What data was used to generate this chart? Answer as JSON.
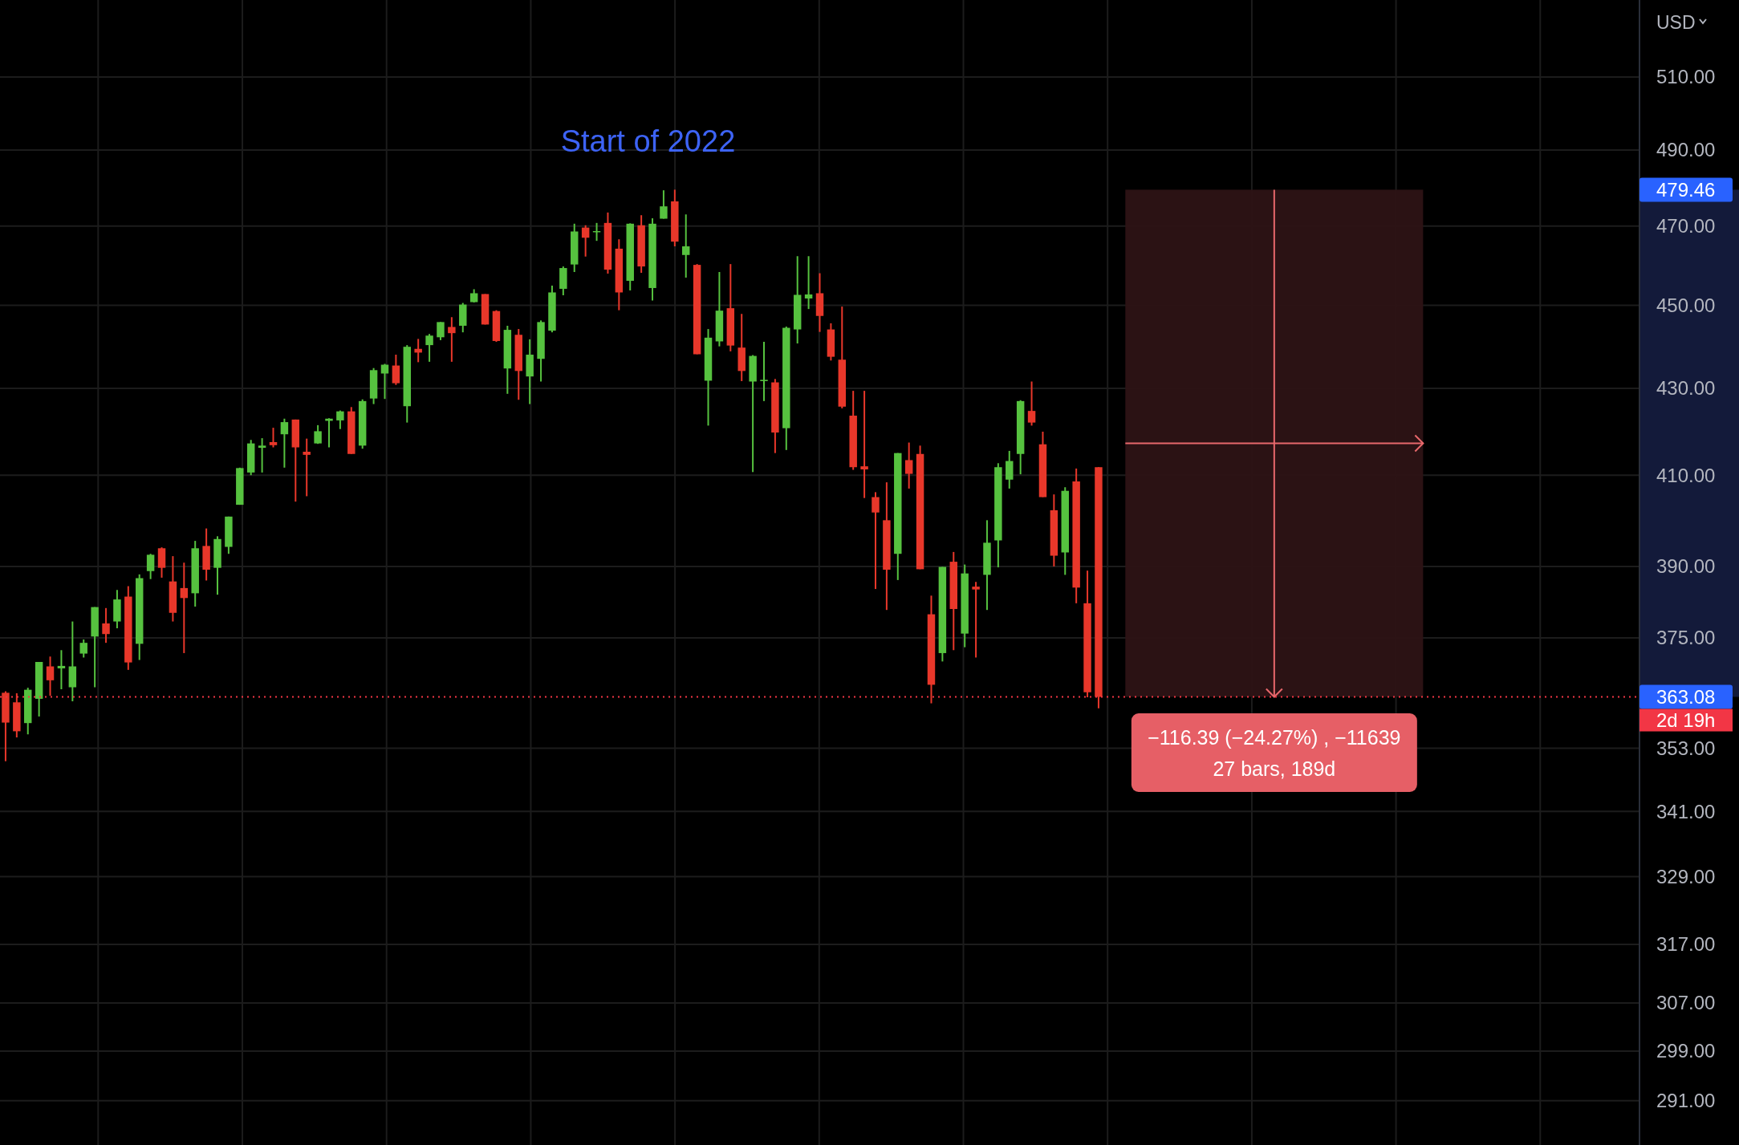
{
  "chart_data": {
    "type": "candlestick",
    "categories": [
      null,
      null,
      null,
      null,
      null,
      null,
      null,
      null,
      null,
      null,
      null,
      null,
      null,
      null,
      null,
      null,
      null,
      null,
      null,
      null,
      null,
      null,
      null,
      null,
      null,
      null,
      null,
      null,
      null,
      null,
      null,
      null,
      null,
      null,
      null,
      null,
      null,
      null,
      null,
      null,
      null,
      null,
      null,
      null,
      null,
      null,
      null,
      null,
      null,
      null,
      null,
      null,
      null,
      null,
      null,
      null,
      null,
      null,
      null,
      null,
      null,
      null,
      null,
      null,
      null,
      null,
      null,
      null,
      null,
      null,
      null,
      null,
      null,
      null,
      null,
      null,
      null,
      null,
      null,
      null,
      null,
      null,
      null,
      null,
      null,
      null,
      null,
      null,
      null,
      null,
      null,
      null,
      null,
      null,
      null,
      null,
      null,
      null,
      null,
      null,
      null,
      null,
      null,
      null,
      null,
      null,
      null,
      null,
      null,
      null,
      null,
      null,
      null,
      null,
      null,
      null,
      null,
      null,
      null,
      null,
      null,
      null,
      null,
      null,
      null,
      null,
      null,
      null,
      null,
      null,
      null,
      null,
      null,
      null,
      null,
      null,
      null,
      null,
      null,
      null,
      null,
      null,
      null,
      null,
      null,
      null,
      null
    ],
    "ohlc": [
      [
        363.9,
        364.2,
        350.5,
        358.0
      ],
      [
        362,
        363.8,
        355.1,
        356.3
      ],
      [
        357.9,
        364.9,
        355.7,
        364.5
      ],
      [
        362.7,
        370.1,
        359.2,
        370.1
      ],
      [
        369.2,
        371.2,
        363.3,
        366.4
      ],
      [
        368.8,
        372.5,
        364.6,
        369.3
      ],
      [
        365,
        378.4,
        362.2,
        369.2
      ],
      [
        371.8,
        374.7,
        371,
        374
      ],
      [
        375.3,
        381.4,
        365,
        381.4
      ],
      [
        378,
        381.2,
        374,
        375.8
      ],
      [
        378.4,
        385,
        377,
        383
      ],
      [
        383.6,
        385.8,
        368.5,
        370
      ],
      [
        373.8,
        388.3,
        370.5,
        387.5
      ],
      [
        389,
        392.7,
        387.3,
        392.5
      ],
      [
        393.9,
        394.1,
        387.6,
        389.7
      ],
      [
        386.8,
        392.2,
        378.4,
        380.2
      ],
      [
        385.4,
        390.8,
        371.9,
        383.3
      ],
      [
        384.3,
        395.5,
        381.5,
        393.9
      ],
      [
        394.4,
        398.2,
        387,
        389.3
      ],
      [
        389.7,
        396.5,
        384,
        395.9
      ],
      [
        394.2,
        400.8,
        392.7,
        400.8
      ],
      [
        403.4,
        411.7,
        403.4,
        411.6
      ],
      [
        410.6,
        418,
        410,
        417.2
      ],
      [
        416.2,
        418.4,
        410.6,
        416.7
      ],
      [
        417.5,
        420.8,
        416.3,
        416.8
      ],
      [
        419.3,
        422.9,
        411.7,
        422.1
      ],
      [
        422.7,
        422.7,
        404.1,
        416.3
      ],
      [
        415.3,
        418.3,
        405.3,
        414.6
      ],
      [
        417.2,
        421.4,
        417.1,
        420
      ],
      [
        422.4,
        423,
        416.3,
        422.9
      ],
      [
        422.5,
        424.8,
        420.5,
        424.6
      ],
      [
        424.6,
        425.6,
        414.8,
        414.8
      ],
      [
        416.7,
        427.4,
        416,
        427
      ],
      [
        427.6,
        434.8,
        426.3,
        434.3
      ],
      [
        433.5,
        435.8,
        427.5,
        435.6
      ],
      [
        435.4,
        438,
        430.8,
        431.2
      ],
      [
        425.8,
        440.3,
        422,
        439.9
      ],
      [
        439.4,
        441.8,
        436.2,
        438.5
      ],
      [
        440.3,
        443,
        436.3,
        442.6
      ],
      [
        442.2,
        445.9,
        441.5,
        445.9
      ],
      [
        444.7,
        447.1,
        436.3,
        443.2
      ],
      [
        445,
        450.6,
        443.4,
        450.2
      ],
      [
        450.8,
        454,
        450.7,
        453
      ],
      [
        452.8,
        452.8,
        445.3,
        445.3
      ],
      [
        448.6,
        448.8,
        441.1,
        441.3
      ],
      [
        434.7,
        445,
        428.7,
        444
      ],
      [
        442.8,
        444.2,
        427.3,
        434.1
      ],
      [
        432.8,
        441.7,
        426.3,
        438
      ],
      [
        437,
        446.3,
        431.6,
        445.9
      ],
      [
        443.8,
        454.9,
        443.4,
        453.2
      ],
      [
        454.1,
        459.7,
        452.5,
        459.3
      ],
      [
        460.2,
        470.6,
        458.3,
        468.6
      ],
      [
        469.6,
        470.2,
        462.2,
        467
      ],
      [
        468.4,
        470.8,
        466.2,
        468.7
      ],
      [
        470.8,
        473.5,
        457.9,
        458.9
      ],
      [
        464.2,
        466.6,
        448.8,
        453.2
      ],
      [
        456.1,
        470.7,
        453.7,
        470.6
      ],
      [
        470.2,
        472.8,
        458.1,
        459.7
      ],
      [
        454.3,
        472,
        451.2,
        470.6
      ],
      [
        471.9,
        479.3,
        471.9,
        475.1
      ],
      [
        476.4,
        479.46,
        464.8,
        466
      ],
      [
        462.6,
        473,
        456.9,
        464.8
      ],
      [
        460.1,
        460.3,
        438.1,
        438.1
      ],
      [
        431.8,
        444.2,
        421.3,
        442.1
      ],
      [
        441.2,
        458.3,
        440,
        448.7
      ],
      [
        449.3,
        460.3,
        438.8,
        440.2
      ],
      [
        439.7,
        447.9,
        431.7,
        434.1
      ],
      [
        431.6,
        437.9,
        410.7,
        437.7
      ],
      [
        431.7,
        441.1,
        427,
        432
      ],
      [
        431.4,
        432.2,
        415,
        419.7
      ],
      [
        420.7,
        444.8,
        415.7,
        444.5
      ],
      [
        444.1,
        462.3,
        440.7,
        452.6
      ],
      [
        451.7,
        462.3,
        449.1,
        452.7
      ],
      [
        453,
        458,
        443.5,
        447.4
      ],
      [
        444.1,
        445.6,
        436.6,
        437.5
      ],
      [
        436.8,
        449.7,
        425.3,
        425.7
      ],
      [
        423.6,
        429.4,
        411.2,
        411.8
      ],
      [
        412,
        429.4,
        404.9,
        411.3
      ],
      [
        405.1,
        406.2,
        385.2,
        401.7
      ],
      [
        400,
        408.4,
        380.8,
        389.3
      ],
      [
        392.7,
        415,
        387.1,
        415
      ],
      [
        413.4,
        417.4,
        407,
        410.3
      ],
      [
        414.8,
        416.7,
        389.4,
        389.4
      ],
      [
        379.9,
        383.8,
        361.8,
        365.5
      ],
      [
        371.9,
        389.9,
        370.2,
        389.9
      ],
      [
        391,
        393.1,
        372.5,
        381
      ],
      [
        375.9,
        390.4,
        373.1,
        388.5
      ],
      [
        385.7,
        386.7,
        371,
        385.1
      ],
      [
        388.2,
        400,
        380.8,
        395.1
      ],
      [
        395.6,
        412.7,
        389.8,
        411.8
      ],
      [
        409,
        415.5,
        407,
        413.2
      ],
      [
        414.8,
        427.2,
        410.2,
        427
      ],
      [
        424.7,
        431.6,
        421.3,
        422
      ],
      [
        417,
        419.9,
        405.1,
        405.1
      ],
      [
        402.2,
        405.7,
        390,
        392.3
      ],
      [
        393,
        407.3,
        388.2,
        406.5
      ],
      [
        408.6,
        411.5,
        382.2,
        385.5
      ],
      [
        382.2,
        389.1,
        363,
        364
      ],
      [
        411.8,
        411.8,
        360.8,
        363.08
      ],
      null,
      null,
      null,
      null,
      null,
      null,
      null,
      null,
      null,
      null,
      null,
      null,
      null,
      null,
      null,
      null,
      null,
      null,
      null,
      null,
      null,
      null,
      null,
      null,
      null,
      null,
      null,
      null,
      null,
      null,
      null,
      null,
      null,
      null,
      null,
      null,
      null,
      null,
      null,
      null,
      null,
      null,
      null,
      null,
      null,
      null,
      null,
      null
    ],
    "colors": [
      "#e8372a",
      "#e8372a",
      "#56c23f",
      "#56c23f",
      "#e8372a",
      "#56c23f",
      "#56c23f",
      "#56c23f",
      "#56c23f",
      "#e8372a",
      "#56c23f",
      "#e8372a",
      "#56c23f",
      "#56c23f",
      "#e8372a",
      "#e8372a",
      "#e8372a",
      "#56c23f",
      "#e8372a",
      "#56c23f",
      "#56c23f",
      "#56c23f",
      "#56c23f",
      "#56c23f",
      "#e8372a",
      "#56c23f",
      "#e8372a",
      "#e8372a",
      "#56c23f",
      "#56c23f",
      "#56c23f",
      "#e8372a",
      "#56c23f",
      "#56c23f",
      "#56c23f",
      "#e8372a",
      "#56c23f",
      "#e8372a",
      "#56c23f",
      "#56c23f",
      "#e8372a",
      "#56c23f",
      "#56c23f",
      "#e8372a",
      "#e8372a",
      "#56c23f",
      "#e8372a",
      "#56c23f",
      "#56c23f",
      "#56c23f",
      "#56c23f",
      "#56c23f",
      "#e8372a",
      "#56c23f",
      "#e8372a",
      "#e8372a",
      "#56c23f",
      "#e8372a",
      "#56c23f",
      "#56c23f",
      "#e8372a",
      "#56c23f",
      "#e8372a",
      "#56c23f",
      "#56c23f",
      "#e8372a",
      "#e8372a",
      "#56c23f",
      "#56c23f",
      "#e8372a",
      "#56c23f",
      "#56c23f",
      "#56c23f",
      "#e8372a",
      "#e8372a",
      "#e8372a",
      "#e8372a",
      "#e8372a",
      "#e8372a",
      "#e8372a",
      "#56c23f",
      "#e8372a",
      "#e8372a",
      "#e8372a",
      "#56c23f",
      "#e8372a",
      "#56c23f",
      "#e8372a",
      "#56c23f",
      "#56c23f",
      "#56c23f",
      "#56c23f",
      "#e8372a",
      "#e8372a",
      "#e8372a",
      "#56c23f",
      "#e8372a",
      "#e8372a",
      "#e8372a",
      null,
      null,
      null,
      null,
      null,
      null,
      null,
      null,
      null,
      null,
      null,
      null,
      null,
      null,
      null,
      null,
      null,
      null,
      null,
      null,
      null,
      null,
      null,
      null,
      null,
      null,
      null,
      null,
      null,
      null,
      null,
      null,
      null,
      null,
      null,
      null,
      null,
      null,
      null,
      null,
      null,
      null,
      null,
      null,
      null,
      null,
      null,
      null
    ],
    "log": true,
    "ylim": [
      284,
      532
    ],
    "yticks": [
      {
        "value": 291,
        "label": "291.00"
      },
      {
        "value": 299,
        "label": "299.00"
      },
      {
        "value": 307,
        "label": "307.00"
      },
      {
        "value": 317,
        "label": "317.00"
      },
      {
        "value": 329,
        "label": "329.00"
      },
      {
        "value": 341,
        "label": "341.00"
      },
      {
        "value": 353,
        "label": "353.00"
      },
      {
        "value": 375,
        "label": "375.00"
      },
      {
        "value": 390,
        "label": "390.00"
      },
      {
        "value": 410,
        "label": "410.00"
      },
      {
        "value": 430,
        "label": "430.00"
      },
      {
        "value": 450,
        "label": "450.00"
      },
      {
        "value": 470,
        "label": "470.00"
      },
      {
        "value": 490,
        "label": "490.00"
      },
      {
        "value": 510,
        "label": "510.00"
      }
    ],
    "tick_labels": "y",
    "grid": true,
    "ref_lines": [
      {
        "axis": "y",
        "value": 363.08,
        "label": "363.08",
        "color": "#f23645",
        "line_style": "dotted"
      }
    ],
    "bands": [
      {
        "axis": "y",
        "from": 363.08,
        "to": 479.46,
        "color": "#2d1315"
      }
    ],
    "annotations": [
      "Start of 2022",
      "479.46",
      "USD",
      "−116.39 (−24.27%) , −11639",
      "27 bars, 189d",
      "2d 19h"
    ]
  }
}
